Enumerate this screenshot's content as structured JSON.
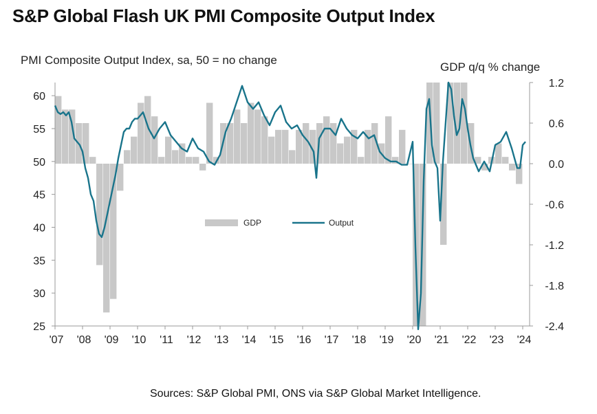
{
  "title": "S&P Global Flash UK PMI Composite Output Index",
  "left_axis_label": "PMI Composite  Output Index, sa, 50 = no change",
  "right_axis_label": "GDP  q/q % change",
  "source": "Sources: S&P Global PMI, ONS via S&P Global Market Intelligence.",
  "chart_data": {
    "type": "bar+line",
    "x_ticks": [
      "'07",
      "'08",
      "'09",
      "'10",
      "'11",
      "'12",
      "'13",
      "'14",
      "'15",
      "'16",
      "'17",
      "'18",
      "'19",
      "'20",
      "'21",
      "'22",
      "'23",
      "'24"
    ],
    "left_axis": {
      "ticks": [
        "60",
        "55",
        "50",
        "45",
        "40",
        "35",
        "30",
        "25"
      ],
      "ylim": [
        25,
        62
      ]
    },
    "right_axis": {
      "ticks": [
        "1.2",
        "0.6",
        "0.0",
        "-0.6",
        "-1.2",
        "-1.8",
        "-2.4"
      ],
      "ylim": [
        -2.4,
        1.2
      ]
    },
    "legend": [
      {
        "name": "GDP",
        "color": "#c8c8c8"
      },
      {
        "name": "Output",
        "color": "#19748b"
      }
    ],
    "series": [
      {
        "name": "GDP",
        "axis": "right",
        "type": "bar",
        "x": [
          2007.0,
          2007.25,
          2007.5,
          2007.75,
          2008.0,
          2008.25,
          2008.5,
          2008.75,
          2009.0,
          2009.25,
          2009.5,
          2009.75,
          2010.0,
          2010.25,
          2010.5,
          2010.75,
          2011.0,
          2011.25,
          2011.5,
          2011.75,
          2012.0,
          2012.25,
          2012.5,
          2012.75,
          2013.0,
          2013.25,
          2013.5,
          2013.75,
          2014.0,
          2014.25,
          2014.5,
          2014.75,
          2015.0,
          2015.25,
          2015.5,
          2015.75,
          2016.0,
          2016.25,
          2016.5,
          2016.75,
          2017.0,
          2017.25,
          2017.5,
          2017.75,
          2018.0,
          2018.25,
          2018.5,
          2018.75,
          2019.0,
          2019.25,
          2019.5,
          2019.75,
          2020.0,
          2020.25,
          2020.5,
          2020.75,
          2021.0,
          2021.25,
          2021.5,
          2021.75,
          2022.0,
          2022.25,
          2022.5,
          2022.75,
          2023.0,
          2023.25,
          2023.5,
          2023.75
        ],
        "values": [
          1.0,
          0.8,
          0.8,
          0.6,
          0.6,
          0.1,
          -1.5,
          -2.2,
          -2.0,
          -0.4,
          0.2,
          0.4,
          0.9,
          1.0,
          0.7,
          0.1,
          0.4,
          0.2,
          0.3,
          0.1,
          0.1,
          -0.1,
          0.9,
          0.1,
          0.6,
          0.6,
          0.8,
          0.6,
          0.9,
          0.8,
          0.7,
          0.4,
          0.5,
          0.5,
          0.2,
          0.5,
          0.6,
          0.5,
          0.6,
          0.7,
          0.6,
          0.3,
          0.4,
          0.5,
          0.1,
          0.5,
          0.6,
          0.3,
          0.7,
          0.1,
          0.5,
          0.0,
          -2.6,
          -2.6,
          1.2,
          1.2,
          -1.2,
          1.2,
          1.2,
          1.2,
          0.6,
          0.1,
          -0.1,
          0.1,
          0.3,
          0.1,
          -0.1,
          -0.3
        ]
      },
      {
        "name": "Output",
        "axis": "left",
        "type": "line",
        "x": [
          2007.0,
          2007.1,
          2007.2,
          2007.3,
          2007.4,
          2007.5,
          2007.6,
          2007.7,
          2007.8,
          2007.9,
          2008.0,
          2008.1,
          2008.2,
          2008.3,
          2008.4,
          2008.5,
          2008.6,
          2008.7,
          2008.8,
          2008.9,
          2009.0,
          2009.1,
          2009.2,
          2009.3,
          2009.4,
          2009.5,
          2009.6,
          2009.7,
          2009.8,
          2009.9,
          2010.0,
          2010.2,
          2010.4,
          2010.6,
          2010.8,
          2011.0,
          2011.2,
          2011.4,
          2011.6,
          2011.8,
          2012.0,
          2012.2,
          2012.4,
          2012.6,
          2012.8,
          2013.0,
          2013.2,
          2013.4,
          2013.6,
          2013.8,
          2014.0,
          2014.2,
          2014.4,
          2014.6,
          2014.8,
          2015.0,
          2015.2,
          2015.4,
          2015.6,
          2015.8,
          2016.0,
          2016.2,
          2016.4,
          2016.5,
          2016.6,
          2016.8,
          2017.0,
          2017.2,
          2017.4,
          2017.6,
          2017.8,
          2018.0,
          2018.2,
          2018.4,
          2018.6,
          2018.8,
          2019.0,
          2019.2,
          2019.4,
          2019.6,
          2019.8,
          2020.0,
          2020.1,
          2020.2,
          2020.3,
          2020.4,
          2020.5,
          2020.6,
          2020.7,
          2020.8,
          2020.9,
          2021.0,
          2021.1,
          2021.2,
          2021.3,
          2021.4,
          2021.5,
          2021.6,
          2021.7,
          2021.8,
          2021.9,
          2022.0,
          2022.1,
          2022.2,
          2022.4,
          2022.6,
          2022.8,
          2023.0,
          2023.2,
          2023.4,
          2023.6,
          2023.8,
          2023.9,
          2024.0,
          2024.1
        ],
        "values": [
          58.5,
          57.5,
          57.2,
          57.5,
          57.0,
          57.5,
          56.0,
          53.5,
          53.0,
          52.5,
          51.5,
          49.0,
          47.5,
          45.0,
          44.0,
          41.0,
          39.0,
          38.5,
          40.0,
          42.0,
          44.0,
          46.0,
          48.0,
          50.5,
          52.5,
          54.5,
          55.0,
          55.0,
          56.0,
          56.5,
          56.5,
          57.5,
          55.0,
          53.5,
          55.0,
          56.0,
          54.0,
          53.0,
          52.0,
          51.5,
          53.5,
          52.0,
          51.5,
          50.0,
          49.5,
          51.0,
          54.5,
          56.5,
          59.0,
          61.5,
          59.0,
          58.0,
          59.0,
          57.0,
          55.5,
          57.5,
          58.5,
          56.0,
          55.0,
          55.5,
          54.0,
          53.0,
          51.5,
          47.5,
          53.5,
          55.0,
          55.0,
          54.0,
          56.5,
          55.0,
          54.0,
          53.5,
          54.5,
          53.5,
          54.0,
          51.5,
          50.5,
          50.0,
          50.0,
          49.5,
          49.5,
          53.0,
          37.0,
          13.5,
          30.0,
          47.0,
          58.0,
          59.5,
          52.5,
          50.0,
          49.0,
          41.0,
          50.0,
          56.0,
          62.0,
          61.0,
          57.0,
          54.0,
          55.0,
          59.5,
          58.0,
          55.0,
          52.5,
          50.5,
          48.5,
          50.0,
          48.5,
          52.5,
          53.0,
          54.5,
          52.0,
          49.0,
          49.0,
          52.5,
          53.0
        ]
      }
    ]
  }
}
